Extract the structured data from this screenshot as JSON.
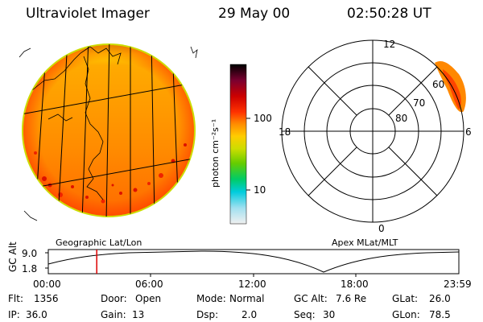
{
  "header": {
    "instrument": "Ultraviolet Imager",
    "date": "29 May 00",
    "time": "02:50:28 UT"
  },
  "colorbar": {
    "unit_label": "photon cm⁻²s⁻¹",
    "tick_labels": [
      "100",
      "10"
    ],
    "colors": [
      "#000000",
      "#7a0030",
      "#cc0000",
      "#ff3300",
      "#ff8800",
      "#ffcc00",
      "#ccdd00",
      "#66cc00",
      "#00cc66",
      "#00ccdd",
      "#a0e0f0",
      "#f0f0f0"
    ]
  },
  "polar_plot": {
    "mlt_labels": {
      "top": "12",
      "bottom": "0",
      "left": "18",
      "right": "6"
    },
    "mlat_labels": [
      "60",
      "70",
      "80"
    ]
  },
  "captions": {
    "left": "Geographic Lat/Lon",
    "right": "Apex MLat/MLT"
  },
  "altitude_strip": {
    "axis_title": "GC Alt",
    "y_ticks": [
      "9.0",
      "1.8"
    ],
    "x_ticks": [
      "00:00",
      "06:00",
      "12:00",
      "18:00",
      "23:59"
    ],
    "current_time_fraction": 0.118
  },
  "footer": {
    "row1": [
      {
        "key": "Flt:",
        "value": "1356"
      },
      {
        "key": "Door:",
        "value": "Open"
      },
      {
        "key": "Mode:",
        "value": "Normal"
      },
      {
        "key": "GC Alt:",
        "value": "7.6 Re"
      },
      {
        "key": "GLat:",
        "value": "26.0"
      }
    ],
    "row2": [
      {
        "key": "IP:",
        "value": "36.0"
      },
      {
        "key": "Gain:",
        "value": "13"
      },
      {
        "key": "Dsp:",
        "value": "2.0"
      },
      {
        "key": "Seq:",
        "value": "30"
      },
      {
        "key": "GLon:",
        "value": "78.5"
      }
    ]
  }
}
